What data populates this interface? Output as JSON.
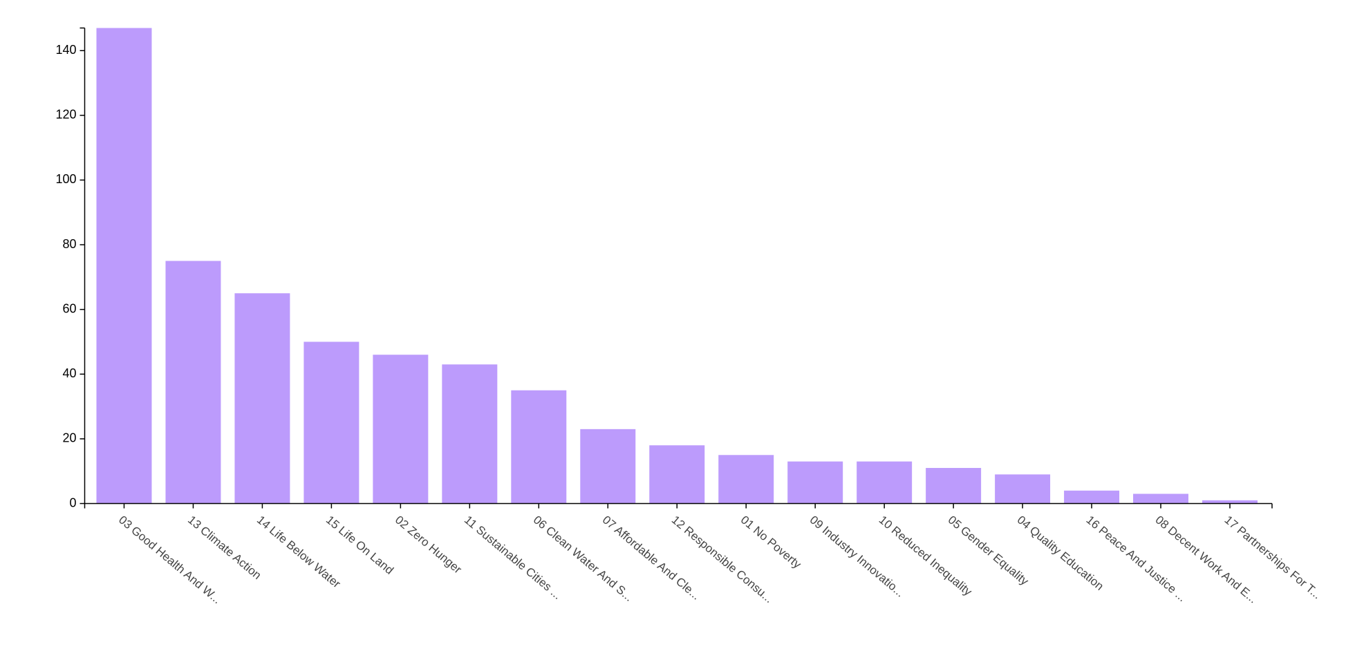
{
  "chart_data": {
    "type": "bar",
    "categories": [
      "03 Good Health And W...",
      "13 Climate Action",
      "14 Life Below Water",
      "15 Life On Land",
      "02 Zero Hunger",
      "11 Sustainable Cities ...",
      "06 Clean Water And S...",
      "07 Affordable And Cle...",
      "12 Responsible Consu...",
      "01 No Poverty",
      "09 Industry Innovatio...",
      "10 Reduced Inequality",
      "05 Gender Equality",
      "04 Quality Education",
      "16 Peace And Justice ...",
      "08 Decent Work And E...",
      "17 Partnerships For T..."
    ],
    "values": [
      147,
      75,
      65,
      50,
      46,
      43,
      35,
      23,
      18,
      15,
      13,
      13,
      11,
      9,
      4,
      3,
      1
    ],
    "color": "#bc9bfc",
    "ylim": [
      0,
      147
    ],
    "yticks": [
      0,
      20,
      40,
      60,
      80,
      100,
      120,
      140
    ],
    "grid": false
  }
}
